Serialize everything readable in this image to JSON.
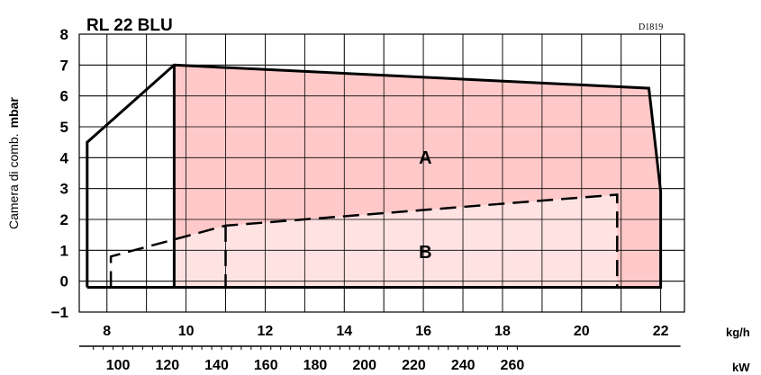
{
  "chart_data": {
    "type": "area",
    "title": "RL 22 BLU",
    "code": "D1819",
    "ylabel": "Camera di comb.",
    "yunit": "mbar",
    "ylim": [
      -1,
      8
    ],
    "y_ticks": [
      "8",
      "7",
      "6",
      "5",
      "4",
      "3",
      "2",
      "1",
      "0",
      "−1"
    ],
    "x_kgh": {
      "unit": "kg/h",
      "ticks": [
        "8",
        "10",
        "12",
        "14",
        "16",
        "18",
        "20",
        "22"
      ],
      "values": [
        8,
        10,
        12,
        14,
        16,
        18,
        20,
        22
      ]
    },
    "x_kw": {
      "unit": "kW",
      "ticks": [
        "100",
        "120",
        "140",
        "160",
        "180",
        "200",
        "220",
        "240",
        "260"
      ],
      "values": [
        100,
        120,
        140,
        160,
        180,
        200,
        220,
        240,
        260
      ]
    },
    "regions": [
      {
        "label": "A",
        "points": [
          [
            9.7,
            7.0
          ],
          [
            21.7,
            6.25
          ],
          [
            22.0,
            2.9
          ],
          [
            22.0,
            -0.2
          ],
          [
            9.7,
            -0.2
          ]
        ]
      },
      {
        "label": "B",
        "points": [
          [
            9.7,
            1.35
          ],
          [
            11.0,
            1.8
          ],
          [
            20.9,
            2.8
          ],
          [
            20.9,
            -0.2
          ],
          [
            9.7,
            -0.2
          ]
        ]
      }
    ],
    "outline_A": [
      [
        7.5,
        -0.2
      ],
      [
        7.5,
        4.5
      ],
      [
        9.7,
        7.0
      ],
      [
        21.7,
        6.25
      ],
      [
        22.0,
        2.9
      ],
      [
        22.0,
        -0.2
      ],
      [
        7.5,
        -0.2
      ]
    ],
    "outline_B_dashed": [
      [
        8.1,
        -0.2
      ],
      [
        8.1,
        0.8
      ],
      [
        9.7,
        1.35
      ],
      [
        11.0,
        1.8
      ],
      [
        20.9,
        2.8
      ],
      [
        20.9,
        -0.2
      ]
    ],
    "colors": {
      "region_A": "#ffc9c9",
      "region_B": "#ffe3e3",
      "axis": "#000000"
    }
  }
}
